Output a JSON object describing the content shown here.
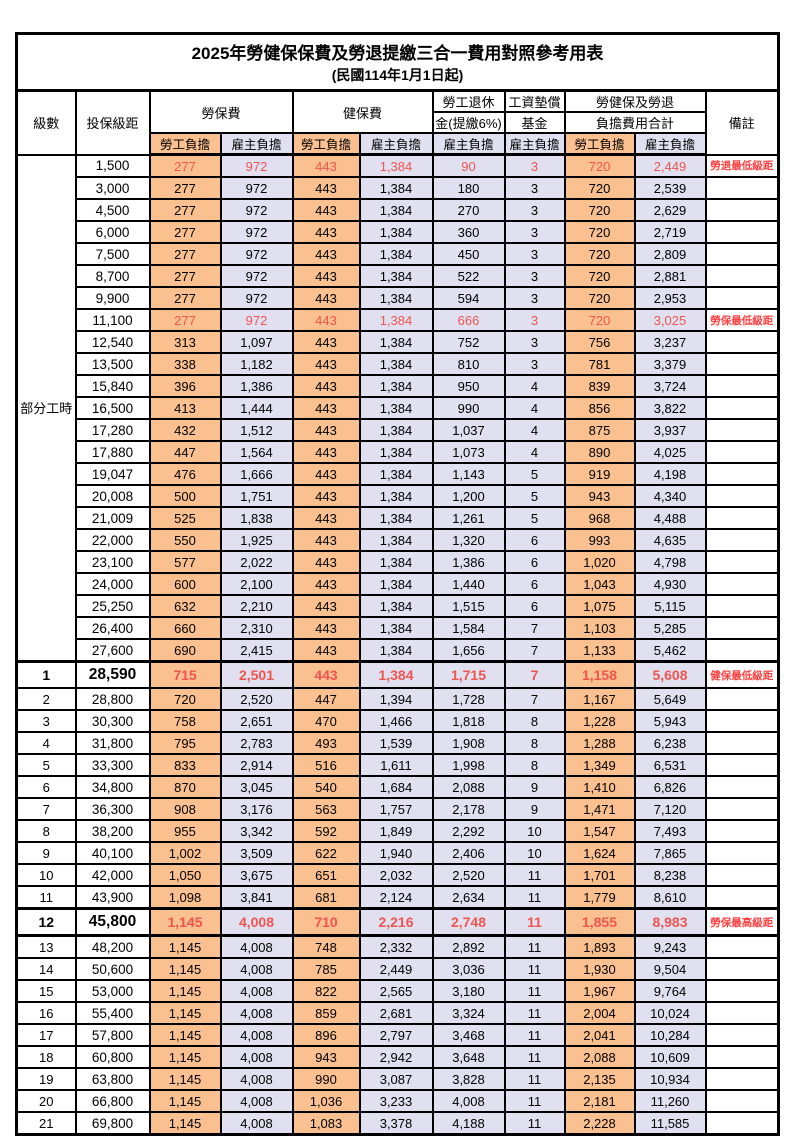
{
  "title": "2025年勞健保保費及勞退提繳三合一費用對照參考用表",
  "subtitle": "(民國114年1月1日起)",
  "colors": {
    "employee_bg": "#fac08f",
    "employer_bg": "#e0e0f0",
    "red_value": "#f0544f",
    "remark_red": "#ff4040",
    "grid": "#000000"
  },
  "header": {
    "level": "級數",
    "bracket": "投保級距",
    "labor_ins": "勞保費",
    "health_ins": "健保費",
    "pension_line1": "勞工退休",
    "pension_line2": "金(提繳6%)",
    "wage_fund_line1": "工資墊償",
    "wage_fund_line2": "基金",
    "total_line1": "勞健保及勞退",
    "total_line2": "負擔費用合計",
    "remark": "備註",
    "employee": "勞工負擔",
    "employer": "雇主負擔"
  },
  "part_time_label": "部分工時",
  "part_time_rowspan": 23,
  "employee_value_columns": [
    0,
    2,
    6
  ],
  "rows": [
    {
      "bracket": "1,500",
      "v": [
        "277",
        "972",
        "443",
        "1,384",
        "90",
        "3",
        "720",
        "2,449"
      ],
      "remark": "勞退最低級距",
      "red": true
    },
    {
      "bracket": "3,000",
      "v": [
        "277",
        "972",
        "443",
        "1,384",
        "180",
        "3",
        "720",
        "2,539"
      ],
      "remark": ""
    },
    {
      "bracket": "4,500",
      "v": [
        "277",
        "972",
        "443",
        "1,384",
        "270",
        "3",
        "720",
        "2,629"
      ],
      "remark": ""
    },
    {
      "bracket": "6,000",
      "v": [
        "277",
        "972",
        "443",
        "1,384",
        "360",
        "3",
        "720",
        "2,719"
      ],
      "remark": ""
    },
    {
      "bracket": "7,500",
      "v": [
        "277",
        "972",
        "443",
        "1,384",
        "450",
        "3",
        "720",
        "2,809"
      ],
      "remark": ""
    },
    {
      "bracket": "8,700",
      "v": [
        "277",
        "972",
        "443",
        "1,384",
        "522",
        "3",
        "720",
        "2,881"
      ],
      "remark": ""
    },
    {
      "bracket": "9,900",
      "v": [
        "277",
        "972",
        "443",
        "1,384",
        "594",
        "3",
        "720",
        "2,953"
      ],
      "remark": ""
    },
    {
      "bracket": "11,100",
      "v": [
        "277",
        "972",
        "443",
        "1,384",
        "666",
        "3",
        "720",
        "3,025"
      ],
      "remark": "勞保最低級距",
      "red": true
    },
    {
      "bracket": "12,540",
      "v": [
        "313",
        "1,097",
        "443",
        "1,384",
        "752",
        "3",
        "756",
        "3,237"
      ],
      "remark": ""
    },
    {
      "bracket": "13,500",
      "v": [
        "338",
        "1,182",
        "443",
        "1,384",
        "810",
        "3",
        "781",
        "3,379"
      ],
      "remark": ""
    },
    {
      "bracket": "15,840",
      "v": [
        "396",
        "1,386",
        "443",
        "1,384",
        "950",
        "4",
        "839",
        "3,724"
      ],
      "remark": ""
    },
    {
      "bracket": "16,500",
      "v": [
        "413",
        "1,444",
        "443",
        "1,384",
        "990",
        "4",
        "856",
        "3,822"
      ],
      "remark": ""
    },
    {
      "bracket": "17,280",
      "v": [
        "432",
        "1,512",
        "443",
        "1,384",
        "1,037",
        "4",
        "875",
        "3,937"
      ],
      "remark": ""
    },
    {
      "bracket": "17,880",
      "v": [
        "447",
        "1,564",
        "443",
        "1,384",
        "1,073",
        "4",
        "890",
        "4,025"
      ],
      "remark": ""
    },
    {
      "bracket": "19,047",
      "v": [
        "476",
        "1,666",
        "443",
        "1,384",
        "1,143",
        "5",
        "919",
        "4,198"
      ],
      "remark": ""
    },
    {
      "bracket": "20,008",
      "v": [
        "500",
        "1,751",
        "443",
        "1,384",
        "1,200",
        "5",
        "943",
        "4,340"
      ],
      "remark": ""
    },
    {
      "bracket": "21,009",
      "v": [
        "525",
        "1,838",
        "443",
        "1,384",
        "1,261",
        "5",
        "968",
        "4,488"
      ],
      "remark": ""
    },
    {
      "bracket": "22,000",
      "v": [
        "550",
        "1,925",
        "443",
        "1,384",
        "1,320",
        "6",
        "993",
        "4,635"
      ],
      "remark": ""
    },
    {
      "bracket": "23,100",
      "v": [
        "577",
        "2,022",
        "443",
        "1,384",
        "1,386",
        "6",
        "1,020",
        "4,798"
      ],
      "remark": ""
    },
    {
      "bracket": "24,000",
      "v": [
        "600",
        "2,100",
        "443",
        "1,384",
        "1,440",
        "6",
        "1,043",
        "4,930"
      ],
      "remark": ""
    },
    {
      "bracket": "25,250",
      "v": [
        "632",
        "2,210",
        "443",
        "1,384",
        "1,515",
        "6",
        "1,075",
        "5,115"
      ],
      "remark": ""
    },
    {
      "bracket": "26,400",
      "v": [
        "660",
        "2,310",
        "443",
        "1,384",
        "1,584",
        "7",
        "1,103",
        "5,285"
      ],
      "remark": ""
    },
    {
      "bracket": "27,600",
      "v": [
        "690",
        "2,415",
        "443",
        "1,384",
        "1,656",
        "7",
        "1,133",
        "5,462"
      ],
      "remark": ""
    },
    {
      "level": "1",
      "bracket": "28,590",
      "v": [
        "715",
        "2,501",
        "443",
        "1,384",
        "1,715",
        "7",
        "1,158",
        "5,608"
      ],
      "remark": "健保最低級距",
      "red": true,
      "bold": true,
      "thick": "top"
    },
    {
      "level": "2",
      "bracket": "28,800",
      "v": [
        "720",
        "2,520",
        "447",
        "1,394",
        "1,728",
        "7",
        "1,167",
        "5,649"
      ],
      "remark": ""
    },
    {
      "level": "3",
      "bracket": "30,300",
      "v": [
        "758",
        "2,651",
        "470",
        "1,466",
        "1,818",
        "8",
        "1,228",
        "5,943"
      ],
      "remark": ""
    },
    {
      "level": "4",
      "bracket": "31,800",
      "v": [
        "795",
        "2,783",
        "493",
        "1,539",
        "1,908",
        "8",
        "1,288",
        "6,238"
      ],
      "remark": ""
    },
    {
      "level": "5",
      "bracket": "33,300",
      "v": [
        "833",
        "2,914",
        "516",
        "1,611",
        "1,998",
        "8",
        "1,349",
        "6,531"
      ],
      "remark": ""
    },
    {
      "level": "6",
      "bracket": "34,800",
      "v": [
        "870",
        "3,045",
        "540",
        "1,684",
        "2,088",
        "9",
        "1,410",
        "6,826"
      ],
      "remark": ""
    },
    {
      "level": "7",
      "bracket": "36,300",
      "v": [
        "908",
        "3,176",
        "563",
        "1,757",
        "2,178",
        "9",
        "1,471",
        "7,120"
      ],
      "remark": ""
    },
    {
      "level": "8",
      "bracket": "38,200",
      "v": [
        "955",
        "3,342",
        "592",
        "1,849",
        "2,292",
        "10",
        "1,547",
        "7,493"
      ],
      "remark": ""
    },
    {
      "level": "9",
      "bracket": "40,100",
      "v": [
        "1,002",
        "3,509",
        "622",
        "1,940",
        "2,406",
        "10",
        "1,624",
        "7,865"
      ],
      "remark": ""
    },
    {
      "level": "10",
      "bracket": "42,000",
      "v": [
        "1,050",
        "3,675",
        "651",
        "2,032",
        "2,520",
        "11",
        "1,701",
        "8,238"
      ],
      "remark": ""
    },
    {
      "level": "11",
      "bracket": "43,900",
      "v": [
        "1,098",
        "3,841",
        "681",
        "2,124",
        "2,634",
        "11",
        "1,779",
        "8,610"
      ],
      "remark": ""
    },
    {
      "level": "12",
      "bracket": "45,800",
      "v": [
        "1,145",
        "4,008",
        "710",
        "2,216",
        "2,748",
        "11",
        "1,855",
        "8,983"
      ],
      "remark": "勞保最高級距",
      "red": true,
      "bold": true,
      "thick": "both"
    },
    {
      "level": "13",
      "bracket": "48,200",
      "v": [
        "1,145",
        "4,008",
        "748",
        "2,332",
        "2,892",
        "11",
        "1,893",
        "9,243"
      ],
      "remark": ""
    },
    {
      "level": "14",
      "bracket": "50,600",
      "v": [
        "1,145",
        "4,008",
        "785",
        "2,449",
        "3,036",
        "11",
        "1,930",
        "9,504"
      ],
      "remark": ""
    },
    {
      "level": "15",
      "bracket": "53,000",
      "v": [
        "1,145",
        "4,008",
        "822",
        "2,565",
        "3,180",
        "11",
        "1,967",
        "9,764"
      ],
      "remark": ""
    },
    {
      "level": "16",
      "bracket": "55,400",
      "v": [
        "1,145",
        "4,008",
        "859",
        "2,681",
        "3,324",
        "11",
        "2,004",
        "10,024"
      ],
      "remark": ""
    },
    {
      "level": "17",
      "bracket": "57,800",
      "v": [
        "1,145",
        "4,008",
        "896",
        "2,797",
        "3,468",
        "11",
        "2,041",
        "10,284"
      ],
      "remark": ""
    },
    {
      "level": "18",
      "bracket": "60,800",
      "v": [
        "1,145",
        "4,008",
        "943",
        "2,942",
        "3,648",
        "11",
        "2,088",
        "10,609"
      ],
      "remark": ""
    },
    {
      "level": "19",
      "bracket": "63,800",
      "v": [
        "1,145",
        "4,008",
        "990",
        "3,087",
        "3,828",
        "11",
        "2,135",
        "10,934"
      ],
      "remark": ""
    },
    {
      "level": "20",
      "bracket": "66,800",
      "v": [
        "1,145",
        "4,008",
        "1,036",
        "3,233",
        "4,008",
        "11",
        "2,181",
        "11,260"
      ],
      "remark": ""
    },
    {
      "level": "21",
      "bracket": "69,800",
      "v": [
        "1,145",
        "4,008",
        "1,083",
        "3,378",
        "4,188",
        "11",
        "2,228",
        "11,585"
      ],
      "remark": ""
    }
  ]
}
